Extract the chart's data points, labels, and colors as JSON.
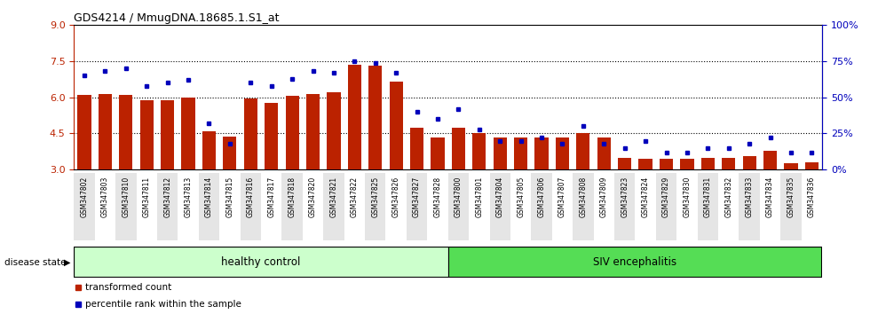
{
  "title": "GDS4214 / MmugDNA.18685.1.S1_at",
  "samples": [
    "GSM347802",
    "GSM347803",
    "GSM347810",
    "GSM347811",
    "GSM347812",
    "GSM347813",
    "GSM347814",
    "GSM347815",
    "GSM347816",
    "GSM347817",
    "GSM347818",
    "GSM347820",
    "GSM347821",
    "GSM347822",
    "GSM347825",
    "GSM347826",
    "GSM347827",
    "GSM347828",
    "GSM347800",
    "GSM347801",
    "GSM347804",
    "GSM347805",
    "GSM347806",
    "GSM347807",
    "GSM347808",
    "GSM347809",
    "GSM347823",
    "GSM347824",
    "GSM347829",
    "GSM347830",
    "GSM347831",
    "GSM347832",
    "GSM347833",
    "GSM347834",
    "GSM347835",
    "GSM347836"
  ],
  "bar_values": [
    6.1,
    6.15,
    6.1,
    5.88,
    5.88,
    6.0,
    4.6,
    4.38,
    5.95,
    5.78,
    6.05,
    6.15,
    6.2,
    7.35,
    7.3,
    6.65,
    4.72,
    4.32,
    4.72,
    4.52,
    4.32,
    4.32,
    4.32,
    4.32,
    4.52,
    4.32,
    3.5,
    3.45,
    3.45,
    3.45,
    3.5,
    3.5,
    3.55,
    3.78,
    3.25,
    3.3
  ],
  "percentile_values": [
    65,
    68,
    70,
    58,
    60,
    62,
    32,
    18,
    60,
    58,
    63,
    68,
    67,
    75,
    74,
    67,
    40,
    35,
    42,
    28,
    20,
    20,
    22,
    18,
    30,
    18,
    15,
    20,
    12,
    12,
    15,
    15,
    18,
    22,
    12,
    12
  ],
  "healthy_count": 18,
  "ylim_left": [
    3,
    9
  ],
  "ylim_right": [
    0,
    100
  ],
  "yticks_left": [
    3,
    4.5,
    6.0,
    7.5,
    9
  ],
  "yticks_right": [
    0,
    25,
    50,
    75,
    100
  ],
  "bar_color": "#bb2200",
  "percentile_color": "#0000bb",
  "healthy_bg": "#ccffcc",
  "siv_bg": "#55dd55",
  "xlabel_bg": "#dddddd",
  "label_healthy": "healthy control",
  "label_siv": "SIV encephalitis",
  "legend_bar": "transformed count",
  "legend_pct": "percentile rank within the sample"
}
